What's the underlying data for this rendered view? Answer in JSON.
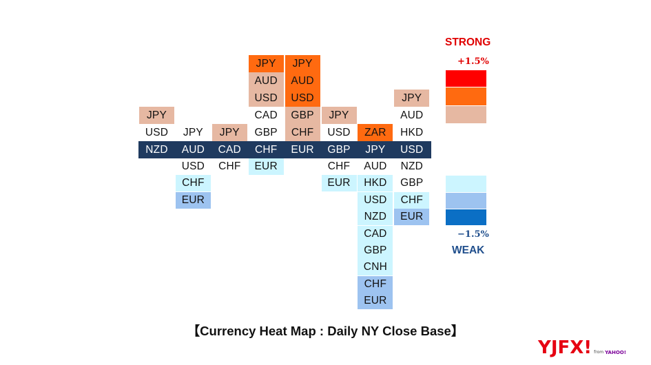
{
  "chart_data": {
    "type": "heatmap",
    "title": "【Currency Heat Map : Daily NY Close Base】",
    "columns": [
      {
        "base": "NZD",
        "above": [
          {
            "label": "JPY",
            "level": "s1"
          },
          {
            "label": "USD",
            "level": "n"
          }
        ],
        "below": []
      },
      {
        "base": "AUD",
        "above": [
          {
            "label": "JPY",
            "level": "n"
          }
        ],
        "below": [
          {
            "label": "USD",
            "level": "n"
          },
          {
            "label": "CHF",
            "level": "w1"
          },
          {
            "label": "EUR",
            "level": "w2"
          }
        ]
      },
      {
        "base": "CAD",
        "above": [
          {
            "label": "JPY",
            "level": "s1"
          }
        ],
        "below": [
          {
            "label": "CHF",
            "level": "n"
          }
        ]
      },
      {
        "base": "CHF",
        "above": [
          {
            "label": "JPY",
            "level": "s2"
          },
          {
            "label": "AUD",
            "level": "s1"
          },
          {
            "label": "USD",
            "level": "s1"
          },
          {
            "label": "CAD",
            "level": "n"
          },
          {
            "label": "GBP",
            "level": "n"
          }
        ],
        "below": [
          {
            "label": "EUR",
            "level": "w1"
          }
        ]
      },
      {
        "base": "EUR",
        "above": [
          {
            "label": "JPY",
            "level": "s2"
          },
          {
            "label": "AUD",
            "level": "s2"
          },
          {
            "label": "USD",
            "level": "s2"
          },
          {
            "label": "GBP",
            "level": "s1"
          },
          {
            "label": "CHF",
            "level": "s1"
          }
        ],
        "below": []
      },
      {
        "base": "GBP",
        "above": [
          {
            "label": "JPY",
            "level": "s1"
          },
          {
            "label": "USD",
            "level": "n"
          }
        ],
        "below": [
          {
            "label": "CHF",
            "level": "n"
          },
          {
            "label": "EUR",
            "level": "w1"
          }
        ]
      },
      {
        "base": "JPY",
        "above": [
          {
            "label": "ZAR",
            "level": "s2"
          }
        ],
        "below": [
          {
            "label": "AUD",
            "level": "n"
          },
          {
            "label": "HKD",
            "level": "w1"
          },
          {
            "label": "USD",
            "level": "w1"
          },
          {
            "label": "NZD",
            "level": "w1"
          },
          {
            "label": "CAD",
            "level": "w1"
          },
          {
            "label": "GBP",
            "level": "w1"
          },
          {
            "label": "CNH",
            "level": "w1"
          },
          {
            "label": "CHF",
            "level": "w2"
          },
          {
            "label": "EUR",
            "level": "w2"
          }
        ]
      },
      {
        "base": "USD",
        "above": [
          {
            "label": "JPY",
            "level": "s1"
          },
          {
            "label": "AUD",
            "level": "n"
          },
          {
            "label": "HKD",
            "level": "n"
          }
        ],
        "below": [
          {
            "label": "NZD",
            "level": "n"
          },
          {
            "label": "GBP",
            "level": "n"
          },
          {
            "label": "CHF",
            "level": "w1"
          },
          {
            "label": "EUR",
            "level": "w2"
          }
        ]
      }
    ],
    "levels": {
      "s3": "#ff0000",
      "s2": "#ff6a10",
      "s1": "#e6b8a2",
      "n": "#ffffff",
      "w1": "#ccf5ff",
      "w2": "#9dc3f0",
      "w3": "#0b6fc5",
      "base": "#1f3a5f"
    },
    "legend": {
      "strong_label": "STRONG",
      "weak_label": "WEAK",
      "max_label": "+1.5%",
      "min_label": "−1.5%",
      "strong_color": "#e00000",
      "weak_color": "#1f4e8c",
      "strong_scale": [
        "s3",
        "s2",
        "s1"
      ],
      "weak_scale": [
        "w1",
        "w2",
        "w3"
      ]
    }
  },
  "logo": {
    "text": "YJFX!",
    "from": "from",
    "yahoo": "YAHOO!",
    "color": "#e60012"
  }
}
